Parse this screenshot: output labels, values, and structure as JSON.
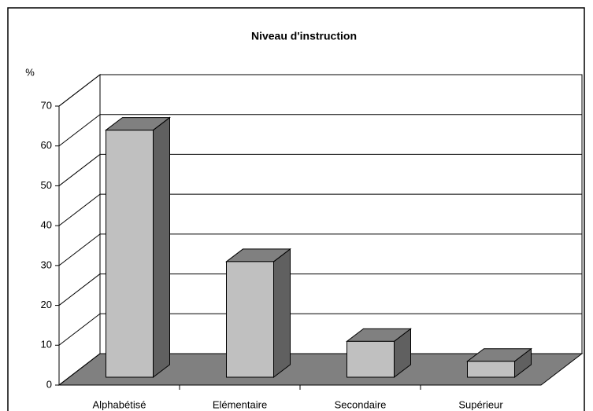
{
  "chart_data": {
    "type": "bar3d",
    "title": "Niveau d'instruction",
    "y_label": "%",
    "categories": [
      "Alphabétisé",
      "Elémentaire",
      "Secondaire",
      "Supérieur"
    ],
    "values": [
      62,
      29,
      9,
      4
    ],
    "color": "#c0c0c0",
    "ylim": [
      0,
      70
    ],
    "yticks": [
      0,
      10,
      20,
      30,
      40,
      50,
      60,
      70
    ],
    "grid": true
  }
}
